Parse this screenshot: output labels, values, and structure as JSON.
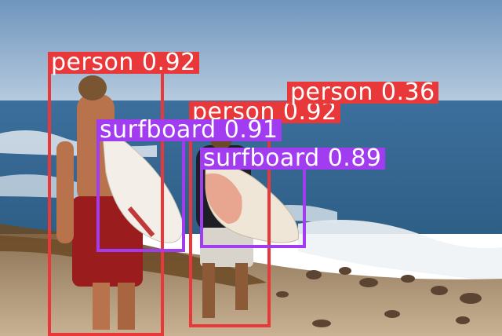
{
  "detections": [
    {
      "label": "person",
      "score": "0.92",
      "color": "#e8383a"
    },
    {
      "label": "person",
      "score": "0.36",
      "color": "#e8383a"
    },
    {
      "label": "person",
      "score": "0.92",
      "color": "#e8383a"
    },
    {
      "label": "surfboard",
      "score": "0.91",
      "color": "#a13cf0"
    },
    {
      "label": "surfboard",
      "score": "0.89",
      "color": "#a13cf0"
    }
  ],
  "labels": {
    "d0": "person 0.92",
    "d1": "person 0.36",
    "d2": "person 0.92",
    "d3": "surfboard 0.91",
    "d4": "surfboard 0.89"
  }
}
